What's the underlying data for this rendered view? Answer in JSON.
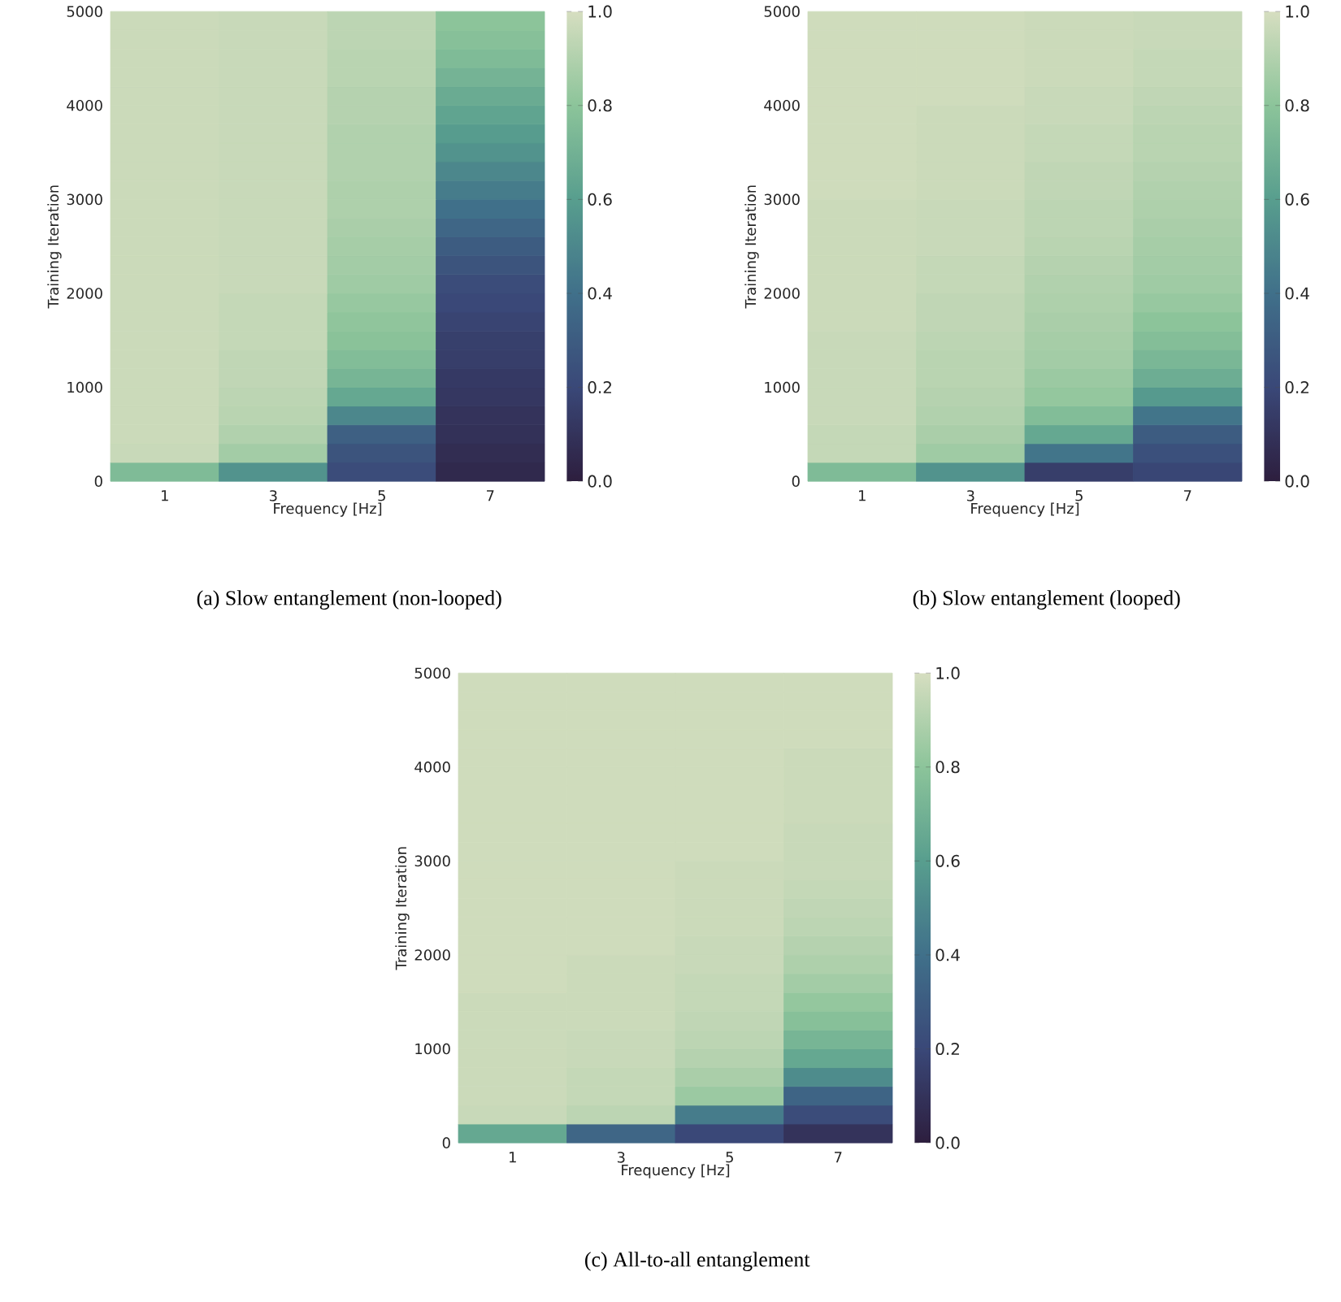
{
  "chart_data": [
    {
      "type": "heatmap",
      "xlabel": "Frequency [Hz]",
      "ylabel": "Training Iteration",
      "categories": [
        "1",
        "3",
        "5",
        "7"
      ],
      "ylim": [
        0,
        5000
      ],
      "yticks": [
        0,
        1000,
        2000,
        3000,
        4000,
        5000
      ],
      "clim": [
        0,
        1
      ],
      "cticks": [
        {
          "value": 0,
          "label": "0.0"
        },
        {
          "value": 0.2,
          "label": "0.2"
        },
        {
          "value": 0.4,
          "label": "0.4"
        },
        {
          "value": 0.6,
          "label": "0.6"
        },
        {
          "value": 0.8,
          "label": "0.8"
        },
        {
          "value": 1,
          "label": "1.0"
        }
      ],
      "annotations": [
        "(a) Slow entanglement (non-looped)"
      ],
      "cells": [
        [
          0.97,
          0.96,
          0.93,
          0.8
        ],
        [
          0.97,
          0.96,
          0.93,
          0.78
        ],
        [
          0.97,
          0.96,
          0.92,
          0.75
        ],
        [
          0.97,
          0.96,
          0.92,
          0.71
        ],
        [
          0.97,
          0.96,
          0.91,
          0.67
        ],
        [
          0.97,
          0.96,
          0.91,
          0.63
        ],
        [
          0.97,
          0.96,
          0.9,
          0.59
        ],
        [
          0.97,
          0.96,
          0.9,
          0.55
        ],
        [
          0.97,
          0.96,
          0.9,
          0.5
        ],
        [
          0.97,
          0.96,
          0.89,
          0.45
        ],
        [
          0.97,
          0.96,
          0.89,
          0.4
        ],
        [
          0.97,
          0.96,
          0.88,
          0.35
        ],
        [
          0.97,
          0.96,
          0.87,
          0.3
        ],
        [
          0.97,
          0.96,
          0.86,
          0.26
        ],
        [
          0.97,
          0.96,
          0.85,
          0.22
        ],
        [
          0.97,
          0.95,
          0.83,
          0.2
        ],
        [
          0.97,
          0.95,
          0.81,
          0.18
        ],
        [
          0.97,
          0.95,
          0.79,
          0.16
        ],
        [
          0.97,
          0.94,
          0.76,
          0.15
        ],
        [
          0.97,
          0.94,
          0.72,
          0.13
        ],
        [
          0.97,
          0.93,
          0.65,
          0.12
        ],
        [
          0.97,
          0.92,
          0.5,
          0.1
        ],
        [
          0.97,
          0.9,
          0.32,
          0.09
        ],
        [
          0.96,
          0.86,
          0.26,
          0.07
        ],
        [
          0.75,
          0.55,
          0.22,
          0.05
        ]
      ]
    },
    {
      "type": "heatmap",
      "xlabel": "Frequency [Hz]",
      "ylabel": "Training Iteration",
      "categories": [
        "1",
        "3",
        "5",
        "7"
      ],
      "ylim": [
        0,
        5000
      ],
      "yticks": [
        0,
        1000,
        2000,
        3000,
        4000,
        5000
      ],
      "clim": [
        0,
        1
      ],
      "cticks": [
        {
          "value": 0,
          "label": "0.0"
        },
        {
          "value": 0.2,
          "label": "0.2"
        },
        {
          "value": 0.4,
          "label": "0.4"
        },
        {
          "value": 0.6,
          "label": "0.6"
        },
        {
          "value": 0.8,
          "label": "0.8"
        },
        {
          "value": 1,
          "label": "1.0"
        }
      ],
      "annotations": [
        "(b) Slow entanglement (looped)"
      ],
      "cells": [
        [
          0.98,
          0.98,
          0.97,
          0.96
        ],
        [
          0.98,
          0.98,
          0.97,
          0.96
        ],
        [
          0.98,
          0.98,
          0.97,
          0.95
        ],
        [
          0.98,
          0.98,
          0.97,
          0.95
        ],
        [
          0.98,
          0.98,
          0.96,
          0.94
        ],
        [
          0.98,
          0.97,
          0.96,
          0.93
        ],
        [
          0.98,
          0.97,
          0.95,
          0.92
        ],
        [
          0.98,
          0.97,
          0.95,
          0.92
        ],
        [
          0.98,
          0.97,
          0.94,
          0.91
        ],
        [
          0.98,
          0.97,
          0.94,
          0.9
        ],
        [
          0.97,
          0.96,
          0.93,
          0.89
        ],
        [
          0.97,
          0.96,
          0.93,
          0.88
        ],
        [
          0.97,
          0.96,
          0.92,
          0.87
        ],
        [
          0.97,
          0.95,
          0.91,
          0.86
        ],
        [
          0.97,
          0.95,
          0.9,
          0.85
        ],
        [
          0.97,
          0.94,
          0.89,
          0.83
        ],
        [
          0.97,
          0.94,
          0.88,
          0.8
        ],
        [
          0.96,
          0.93,
          0.87,
          0.77
        ],
        [
          0.96,
          0.92,
          0.86,
          0.73
        ],
        [
          0.96,
          0.92,
          0.84,
          0.68
        ],
        [
          0.96,
          0.91,
          0.82,
          0.58
        ],
        [
          0.96,
          0.9,
          0.76,
          0.42
        ],
        [
          0.95,
          0.88,
          0.65,
          0.3
        ],
        [
          0.95,
          0.85,
          0.42,
          0.24
        ],
        [
          0.75,
          0.55,
          0.15,
          0.19
        ]
      ]
    },
    {
      "type": "heatmap",
      "xlabel": "Frequency [Hz]",
      "ylabel": "Training Iteration",
      "categories": [
        "1",
        "3",
        "5",
        "7"
      ],
      "ylim": [
        0,
        5000
      ],
      "yticks": [
        0,
        1000,
        2000,
        3000,
        4000,
        5000
      ],
      "clim": [
        0,
        1
      ],
      "cticks": [
        {
          "value": 0,
          "label": "0.0"
        },
        {
          "value": 0.2,
          "label": "0.2"
        },
        {
          "value": 0.4,
          "label": "0.4"
        },
        {
          "value": 0.6,
          "label": "0.6"
        },
        {
          "value": 0.8,
          "label": "0.8"
        },
        {
          "value": 1,
          "label": "1.0"
        }
      ],
      "annotations": [
        "(c) All-to-all entanglement"
      ],
      "cells": [
        [
          0.98,
          0.98,
          0.98,
          0.98
        ],
        [
          0.98,
          0.98,
          0.98,
          0.98
        ],
        [
          0.98,
          0.98,
          0.98,
          0.98
        ],
        [
          0.98,
          0.98,
          0.98,
          0.98
        ],
        [
          0.98,
          0.98,
          0.98,
          0.97
        ],
        [
          0.98,
          0.98,
          0.98,
          0.97
        ],
        [
          0.98,
          0.98,
          0.98,
          0.97
        ],
        [
          0.98,
          0.98,
          0.98,
          0.97
        ],
        [
          0.98,
          0.98,
          0.98,
          0.96
        ],
        [
          0.98,
          0.98,
          0.98,
          0.96
        ],
        [
          0.98,
          0.98,
          0.97,
          0.96
        ],
        [
          0.98,
          0.98,
          0.97,
          0.95
        ],
        [
          0.98,
          0.98,
          0.97,
          0.94
        ],
        [
          0.98,
          0.98,
          0.97,
          0.93
        ],
        [
          0.98,
          0.98,
          0.96,
          0.91
        ],
        [
          0.98,
          0.97,
          0.96,
          0.89
        ],
        [
          0.98,
          0.97,
          0.95,
          0.86
        ],
        [
          0.97,
          0.97,
          0.95,
          0.82
        ],
        [
          0.97,
          0.97,
          0.94,
          0.78
        ],
        [
          0.97,
          0.96,
          0.93,
          0.72
        ],
        [
          0.97,
          0.96,
          0.91,
          0.65
        ],
        [
          0.97,
          0.95,
          0.88,
          0.52
        ],
        [
          0.97,
          0.95,
          0.84,
          0.34
        ],
        [
          0.96,
          0.93,
          0.45,
          0.22
        ],
        [
          0.65,
          0.35,
          0.2,
          0.1
        ]
      ]
    }
  ]
}
